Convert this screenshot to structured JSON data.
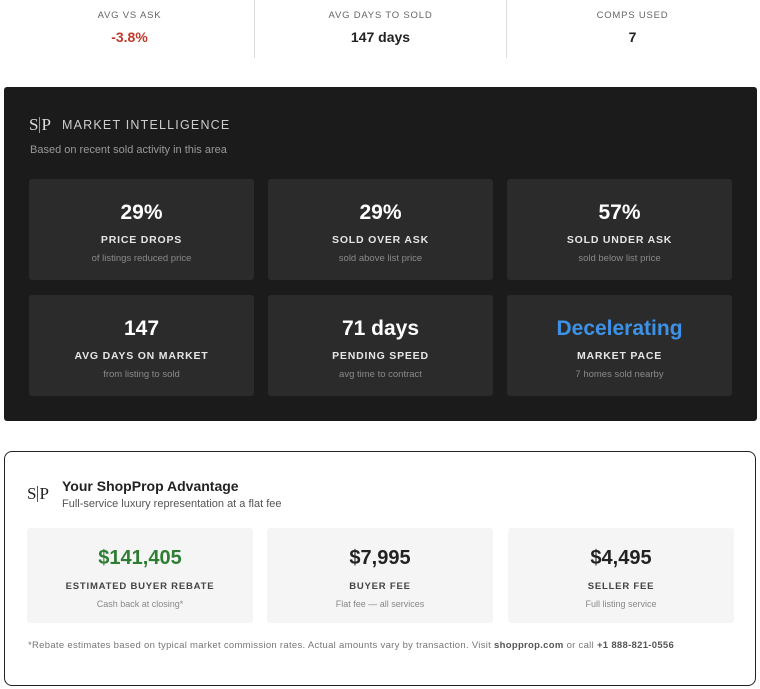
{
  "summary": [
    {
      "label": "AVG VS ASK",
      "value": "-3.8%"
    },
    {
      "label": "AVG DAYS TO SOLD",
      "value": "147 days"
    },
    {
      "label": "COMPS USED",
      "value": "7"
    }
  ],
  "market": {
    "logo": [
      "S",
      "P"
    ],
    "title": "MARKET INTELLIGENCE",
    "subtitle": "Based on recent sold activity in this area",
    "cards": [
      {
        "value": "29%",
        "label": "PRICE DROPS",
        "note": "of listings reduced price"
      },
      {
        "value": "29%",
        "label": "SOLD OVER ASK",
        "note": "sold above list price"
      },
      {
        "value": "57%",
        "label": "SOLD UNDER ASK",
        "note": "sold below list price"
      },
      {
        "value": "147",
        "label": "AVG DAYS ON MARKET",
        "note": "from listing to sold"
      },
      {
        "value": "71 days",
        "label": "PENDING SPEED",
        "note": "avg time to contract"
      },
      {
        "value": "Decelerating",
        "label": "MARKET PACE",
        "note": "7 homes sold nearby"
      }
    ]
  },
  "advantage": {
    "logo": [
      "S",
      "P"
    ],
    "title": "Your ShopProp Advantage",
    "subtitle": "Full-service luxury representation at a flat fee",
    "cards": [
      {
        "value": "$141,405",
        "label": "ESTIMATED BUYER REBATE",
        "note": "Cash back at closing*"
      },
      {
        "value": "$7,995",
        "label": "BUYER FEE",
        "note": "Flat fee — all services"
      },
      {
        "value": "$4,495",
        "label": "SELLER FEE",
        "note": "Full listing service"
      }
    ],
    "disclaimer": [
      "*Rebate estimates based on typical market commission rates. Actual amounts vary by transaction. Visit ",
      "shopprop.com",
      " or call ",
      "+1 888-821-0556"
    ]
  }
}
